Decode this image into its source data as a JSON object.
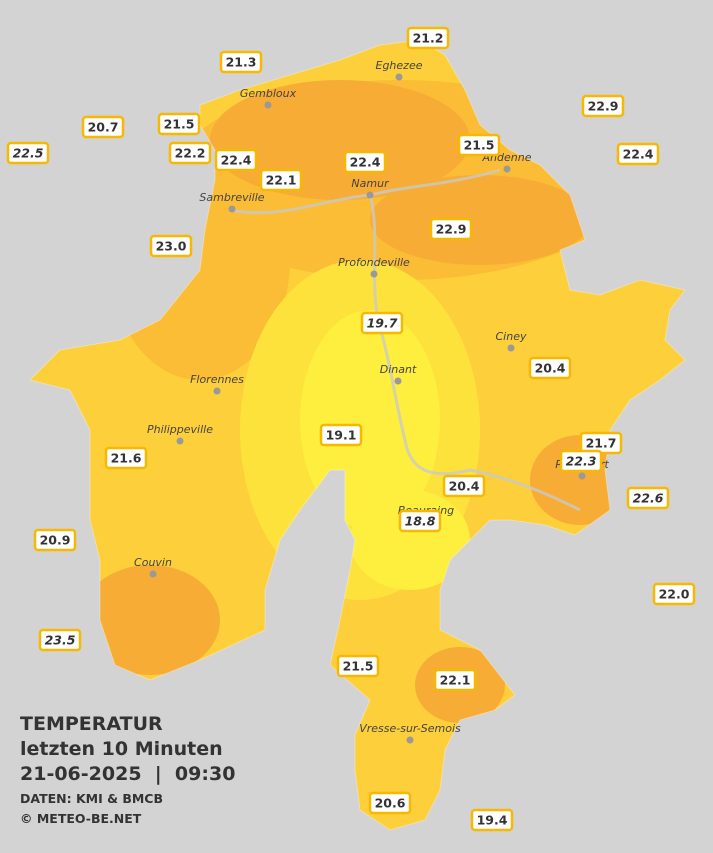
{
  "title": "TEMPERATUR",
  "subtitle": "letzten 10 Minuten",
  "timestamp": "21-06-2025  |  09:30",
  "source": "DATEN: KMI & BMCB",
  "credit": "© METEO-BE.NET",
  "cities": [
    "Eghezee",
    "Gembloux",
    "Andenne",
    "Namur",
    "Sambreville",
    "Profondeville",
    "Ciney",
    "Dinant",
    "Florennes",
    "Philippeville",
    "Rochefort",
    "Beauraing",
    "Couvin",
    "Vresse-sur-Semois"
  ],
  "stations": [
    {
      "label": "21.2",
      "italic": false
    },
    {
      "label": "21.3",
      "italic": false
    },
    {
      "label": "22.9",
      "italic": false
    },
    {
      "label": "20.7",
      "italic": false
    },
    {
      "label": "21.5",
      "italic": false
    },
    {
      "label": "21.5",
      "italic": false
    },
    {
      "label": "22.5",
      "italic": true
    },
    {
      "label": "22.2",
      "italic": false
    },
    {
      "label": "22.4",
      "italic": false
    },
    {
      "label": "22.4",
      "italic": false
    },
    {
      "label": "22.4",
      "italic": false
    },
    {
      "label": "22.1",
      "italic": false
    },
    {
      "label": "23.0",
      "italic": false
    },
    {
      "label": "22.9",
      "italic": false
    },
    {
      "label": "19.7",
      "italic": true
    },
    {
      "label": "20.4",
      "italic": false
    },
    {
      "label": "19.1",
      "italic": false
    },
    {
      "label": "21.7",
      "italic": false
    },
    {
      "label": "22.3",
      "italic": true
    },
    {
      "label": "21.6",
      "italic": false
    },
    {
      "label": "20.4",
      "italic": false
    },
    {
      "label": "22.6",
      "italic": true
    },
    {
      "label": "18.8",
      "italic": true
    },
    {
      "label": "20.9",
      "italic": false
    },
    {
      "label": "22.0",
      "italic": false
    },
    {
      "label": "23.5",
      "italic": true
    },
    {
      "label": "21.5",
      "italic": false
    },
    {
      "label": "22.1",
      "italic": false
    },
    {
      "label": "20.6",
      "italic": false
    },
    {
      "label": "19.4",
      "italic": false
    }
  ]
}
